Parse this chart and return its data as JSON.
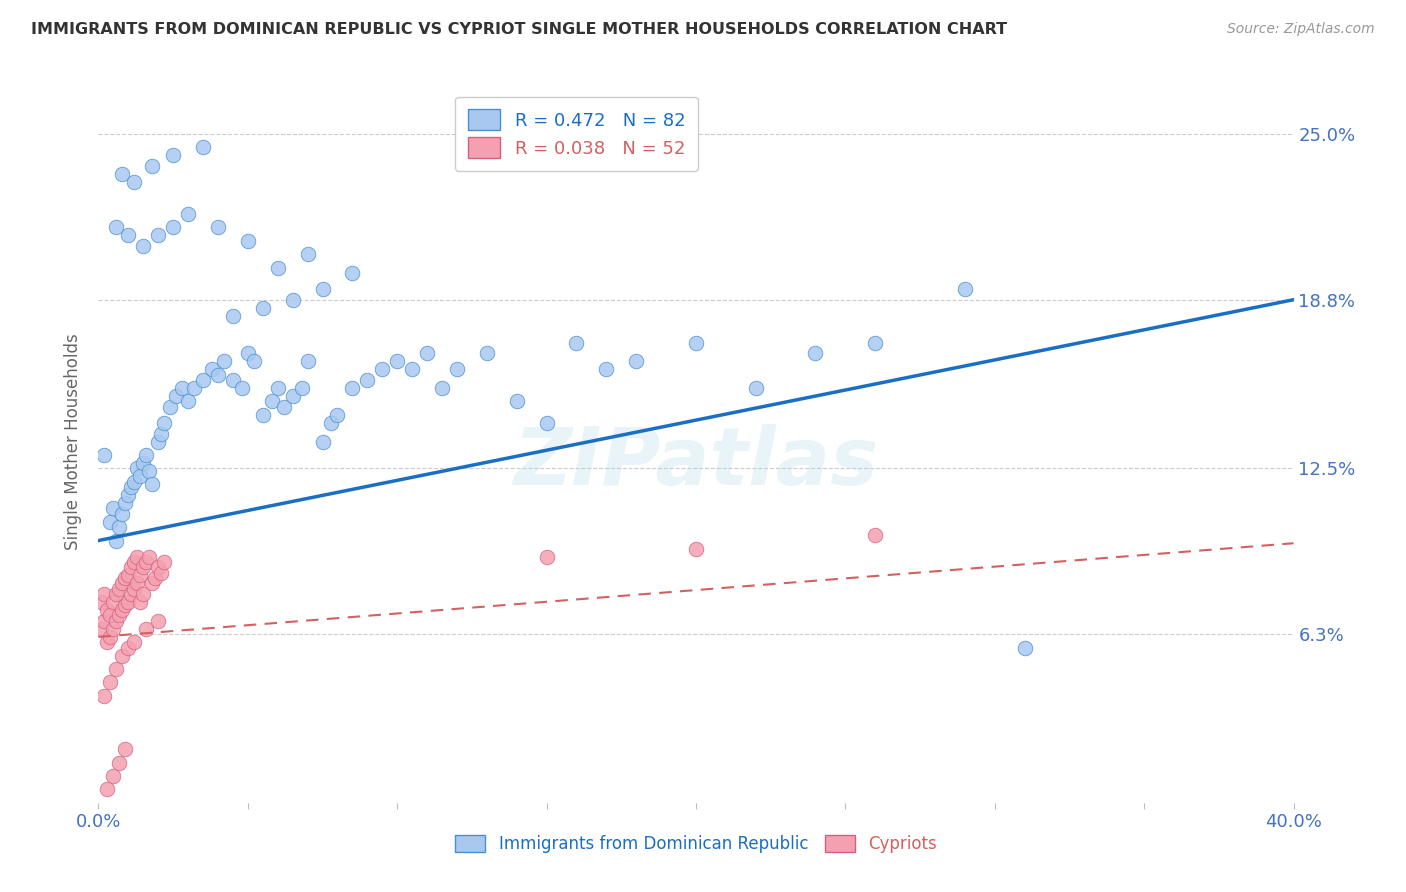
{
  "title": "IMMIGRANTS FROM DOMINICAN REPUBLIC VS CYPRIOT SINGLE MOTHER HOUSEHOLDS CORRELATION CHART",
  "source": "Source: ZipAtlas.com",
  "ylabel": "Single Mother Households",
  "ytick_labels": [
    "25.0%",
    "18.8%",
    "12.5%",
    "6.3%"
  ],
  "ytick_values": [
    0.25,
    0.188,
    0.125,
    0.063
  ],
  "xlim": [
    0.0,
    0.4
  ],
  "ylim": [
    0.0,
    0.27
  ],
  "watermark": "ZIPatlas",
  "blue_line_color": "#1a6fc4",
  "pink_line_color": "#d46060",
  "scatter_blue_color": "#a8c8f0",
  "scatter_blue_edge": "#4a90d0",
  "scatter_pink_color": "#f4a0b0",
  "scatter_pink_edge": "#d46080",
  "background_color": "#ffffff",
  "grid_color": "#cccccc",
  "title_color": "#333333",
  "axis_label_color": "#4472c4",
  "ytick_color": "#4472c4",
  "blue_scatter_x": [
    0.002,
    0.004,
    0.005,
    0.006,
    0.007,
    0.008,
    0.009,
    0.01,
    0.011,
    0.012,
    0.013,
    0.014,
    0.015,
    0.016,
    0.017,
    0.018,
    0.02,
    0.021,
    0.022,
    0.024,
    0.026,
    0.028,
    0.03,
    0.032,
    0.035,
    0.038,
    0.04,
    0.042,
    0.045,
    0.048,
    0.05,
    0.052,
    0.055,
    0.058,
    0.06,
    0.062,
    0.065,
    0.068,
    0.07,
    0.075,
    0.078,
    0.08,
    0.085,
    0.09,
    0.095,
    0.1,
    0.105,
    0.11,
    0.115,
    0.12,
    0.13,
    0.14,
    0.15,
    0.16,
    0.17,
    0.18,
    0.2,
    0.22,
    0.24,
    0.26,
    0.006,
    0.01,
    0.015,
    0.02,
    0.025,
    0.03,
    0.04,
    0.05,
    0.06,
    0.07,
    0.008,
    0.012,
    0.018,
    0.025,
    0.035,
    0.045,
    0.055,
    0.065,
    0.075,
    0.085,
    0.29,
    0.31
  ],
  "blue_scatter_y": [
    0.13,
    0.105,
    0.11,
    0.098,
    0.103,
    0.108,
    0.112,
    0.115,
    0.118,
    0.12,
    0.125,
    0.122,
    0.127,
    0.13,
    0.124,
    0.119,
    0.135,
    0.138,
    0.142,
    0.148,
    0.152,
    0.155,
    0.15,
    0.155,
    0.158,
    0.162,
    0.16,
    0.165,
    0.158,
    0.155,
    0.168,
    0.165,
    0.145,
    0.15,
    0.155,
    0.148,
    0.152,
    0.155,
    0.165,
    0.135,
    0.142,
    0.145,
    0.155,
    0.158,
    0.162,
    0.165,
    0.162,
    0.168,
    0.155,
    0.162,
    0.168,
    0.15,
    0.142,
    0.172,
    0.162,
    0.165,
    0.172,
    0.155,
    0.168,
    0.172,
    0.215,
    0.212,
    0.208,
    0.212,
    0.215,
    0.22,
    0.215,
    0.21,
    0.2,
    0.205,
    0.235,
    0.232,
    0.238,
    0.242,
    0.245,
    0.182,
    0.185,
    0.188,
    0.192,
    0.198,
    0.192,
    0.058
  ],
  "pink_scatter_x": [
    0.001,
    0.001,
    0.002,
    0.002,
    0.003,
    0.003,
    0.004,
    0.004,
    0.005,
    0.005,
    0.006,
    0.006,
    0.007,
    0.007,
    0.008,
    0.008,
    0.009,
    0.009,
    0.01,
    0.01,
    0.011,
    0.011,
    0.012,
    0.012,
    0.013,
    0.013,
    0.014,
    0.014,
    0.015,
    0.015,
    0.016,
    0.017,
    0.018,
    0.019,
    0.02,
    0.021,
    0.022,
    0.002,
    0.004,
    0.006,
    0.008,
    0.01,
    0.012,
    0.016,
    0.02,
    0.15,
    0.2,
    0.26,
    0.003,
    0.005,
    0.007,
    0.009
  ],
  "pink_scatter_y": [
    0.065,
    0.075,
    0.068,
    0.078,
    0.06,
    0.072,
    0.062,
    0.07,
    0.065,
    0.075,
    0.068,
    0.078,
    0.07,
    0.08,
    0.072,
    0.082,
    0.074,
    0.084,
    0.075,
    0.085,
    0.078,
    0.088,
    0.08,
    0.09,
    0.082,
    0.092,
    0.085,
    0.075,
    0.088,
    0.078,
    0.09,
    0.092,
    0.082,
    0.084,
    0.088,
    0.086,
    0.09,
    0.04,
    0.045,
    0.05,
    0.055,
    0.058,
    0.06,
    0.065,
    0.068,
    0.092,
    0.095,
    0.1,
    0.005,
    0.01,
    0.015,
    0.02
  ],
  "blue_trend_x0": 0.0,
  "blue_trend_y0": 0.098,
  "blue_trend_x1": 0.4,
  "blue_trend_y1": 0.188,
  "pink_trend_x0": 0.0,
  "pink_trend_y0": 0.062,
  "pink_trend_x1": 0.4,
  "pink_trend_y1": 0.097
}
